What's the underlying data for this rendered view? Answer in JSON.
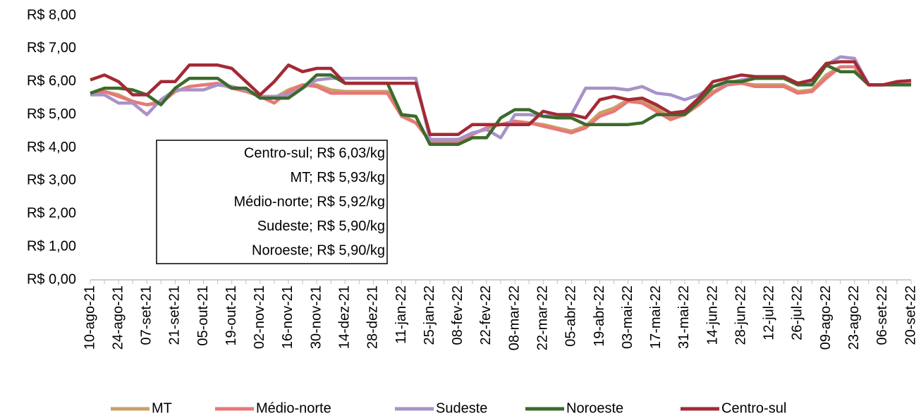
{
  "chart_data": {
    "type": "line",
    "categories": [
      "10-ago-21",
      null,
      "24-ago-21",
      null,
      "07-set-21",
      null,
      "21-set-21",
      null,
      "05-out-21",
      null,
      "19-out-21",
      null,
      "02-nov-21",
      null,
      "16-nov-21",
      null,
      "30-nov-21",
      null,
      "14-dez-21",
      null,
      "28-dez-21",
      null,
      "11-jan-22",
      null,
      "25-jan-22",
      null,
      "08-fev-22",
      null,
      "22-fev-22",
      null,
      "08-mar-22",
      null,
      "22-mar-22",
      null,
      "05-abr-22",
      null,
      "19-abr-22",
      null,
      "03-mai-22",
      null,
      "17-mai-22",
      null,
      "31-mai-22",
      null,
      "14-jun-22",
      null,
      "28-jun-22",
      null,
      "12-jul-22",
      null,
      "26-jul-22",
      null,
      "09-ago-22",
      null,
      "23-ago-22",
      null,
      "06-set-22",
      null,
      "20-set-22"
    ],
    "series": [
      {
        "name": "MT",
        "color": "#c9a064",
        "values": [
          5.65,
          5.7,
          5.6,
          5.4,
          5.3,
          5.4,
          5.7,
          5.85,
          5.9,
          5.9,
          5.85,
          5.75,
          5.55,
          5.5,
          5.75,
          5.9,
          5.9,
          5.75,
          5.7,
          5.7,
          5.7,
          5.7,
          5.0,
          4.75,
          4.2,
          4.2,
          4.2,
          4.4,
          4.6,
          4.7,
          4.8,
          4.75,
          4.7,
          4.6,
          4.5,
          4.65,
          5.05,
          5.2,
          5.45,
          5.4,
          5.2,
          4.9,
          5.0,
          5.4,
          5.7,
          5.9,
          5.95,
          5.9,
          5.9,
          5.9,
          5.7,
          5.75,
          6.2,
          6.45,
          6.45,
          5.9,
          5.9,
          5.95,
          5.93
        ]
      },
      {
        "name": "Médio-norte",
        "color": "#e87878",
        "values": [
          5.65,
          5.7,
          5.55,
          5.4,
          5.3,
          5.35,
          5.7,
          5.85,
          5.9,
          5.95,
          5.8,
          5.7,
          5.55,
          5.35,
          5.7,
          5.9,
          5.85,
          5.65,
          5.65,
          5.65,
          5.65,
          5.65,
          4.95,
          4.75,
          4.2,
          4.2,
          4.2,
          4.4,
          4.6,
          4.7,
          4.8,
          4.75,
          4.65,
          4.55,
          4.45,
          4.6,
          4.95,
          5.1,
          5.4,
          5.35,
          5.1,
          4.85,
          5.0,
          5.3,
          5.65,
          5.9,
          5.95,
          5.85,
          5.85,
          5.85,
          5.65,
          5.7,
          6.1,
          6.45,
          6.45,
          5.9,
          5.9,
          5.95,
          5.92
        ]
      },
      {
        "name": "Sudeste",
        "color": "#a892c8",
        "values": [
          5.6,
          5.6,
          5.35,
          5.35,
          5.0,
          5.45,
          5.75,
          5.75,
          5.75,
          5.9,
          5.85,
          5.75,
          5.55,
          5.55,
          5.6,
          5.8,
          6.05,
          6.1,
          6.1,
          6.1,
          6.1,
          6.1,
          6.1,
          6.1,
          4.25,
          4.25,
          4.25,
          4.45,
          4.55,
          4.3,
          5.0,
          5.0,
          4.95,
          5.0,
          5.0,
          5.8,
          5.8,
          5.8,
          5.75,
          5.85,
          5.65,
          5.6,
          5.45,
          5.6,
          5.85,
          5.95,
          6.05,
          6.1,
          6.1,
          6.1,
          5.9,
          5.95,
          6.5,
          6.75,
          6.7,
          5.9,
          5.9,
          5.95,
          5.9
        ]
      },
      {
        "name": "Noroeste",
        "color": "#3b6b2b",
        "values": [
          5.65,
          5.8,
          5.8,
          5.75,
          5.6,
          5.3,
          5.8,
          6.1,
          6.1,
          6.1,
          5.8,
          5.8,
          5.5,
          5.5,
          5.5,
          5.8,
          6.2,
          6.2,
          5.95,
          5.95,
          5.95,
          5.95,
          5.0,
          4.95,
          4.1,
          4.1,
          4.1,
          4.3,
          4.3,
          4.9,
          5.15,
          5.15,
          4.95,
          4.9,
          4.9,
          4.7,
          4.7,
          4.7,
          4.7,
          4.75,
          5.0,
          5.0,
          5.0,
          5.4,
          5.85,
          6.0,
          6.0,
          6.1,
          6.1,
          6.1,
          5.9,
          5.9,
          6.5,
          6.3,
          6.3,
          5.9,
          5.9,
          5.9,
          5.9
        ]
      },
      {
        "name": "Centro-sul",
        "color": "#a32a35",
        "values": [
          6.05,
          6.2,
          6.0,
          5.6,
          5.6,
          6.0,
          6.0,
          6.5,
          6.5,
          6.5,
          6.4,
          6.0,
          5.6,
          6.0,
          6.5,
          6.3,
          6.4,
          6.4,
          5.95,
          5.95,
          5.95,
          5.95,
          5.95,
          5.95,
          4.4,
          4.4,
          4.4,
          4.7,
          4.7,
          4.7,
          4.7,
          4.7,
          5.1,
          5.0,
          5.0,
          4.9,
          5.45,
          5.55,
          5.45,
          5.5,
          5.3,
          5.05,
          5.1,
          5.5,
          6.0,
          6.1,
          6.2,
          6.15,
          6.15,
          6.15,
          5.95,
          6.05,
          6.55,
          6.6,
          6.6,
          5.9,
          5.9,
          6.0,
          6.03
        ]
      }
    ],
    "ylim": [
      0,
      8
    ],
    "yticks": [
      {
        "value": 0,
        "label": "R$ 0,00"
      },
      {
        "value": 1,
        "label": "R$ 1,00"
      },
      {
        "value": 2,
        "label": "R$ 2,00"
      },
      {
        "value": 3,
        "label": "R$ 3,00"
      },
      {
        "value": 4,
        "label": "R$ 4,00"
      },
      {
        "value": 5,
        "label": "R$ 5,00"
      },
      {
        "value": 6,
        "label": "R$ 6,00"
      },
      {
        "value": 7,
        "label": "R$ 7,00"
      },
      {
        "value": 8,
        "label": "R$ 8,00"
      }
    ],
    "annotations": [
      "Centro-sul; R$ 6,03/kg",
      "MT; R$ 5,93/kg",
      "Médio-norte; R$ 5,92/kg",
      "Sudeste; R$ 5,90/kg",
      "Noroeste; R$ 5,90/kg"
    ],
    "legend": "bottom"
  }
}
